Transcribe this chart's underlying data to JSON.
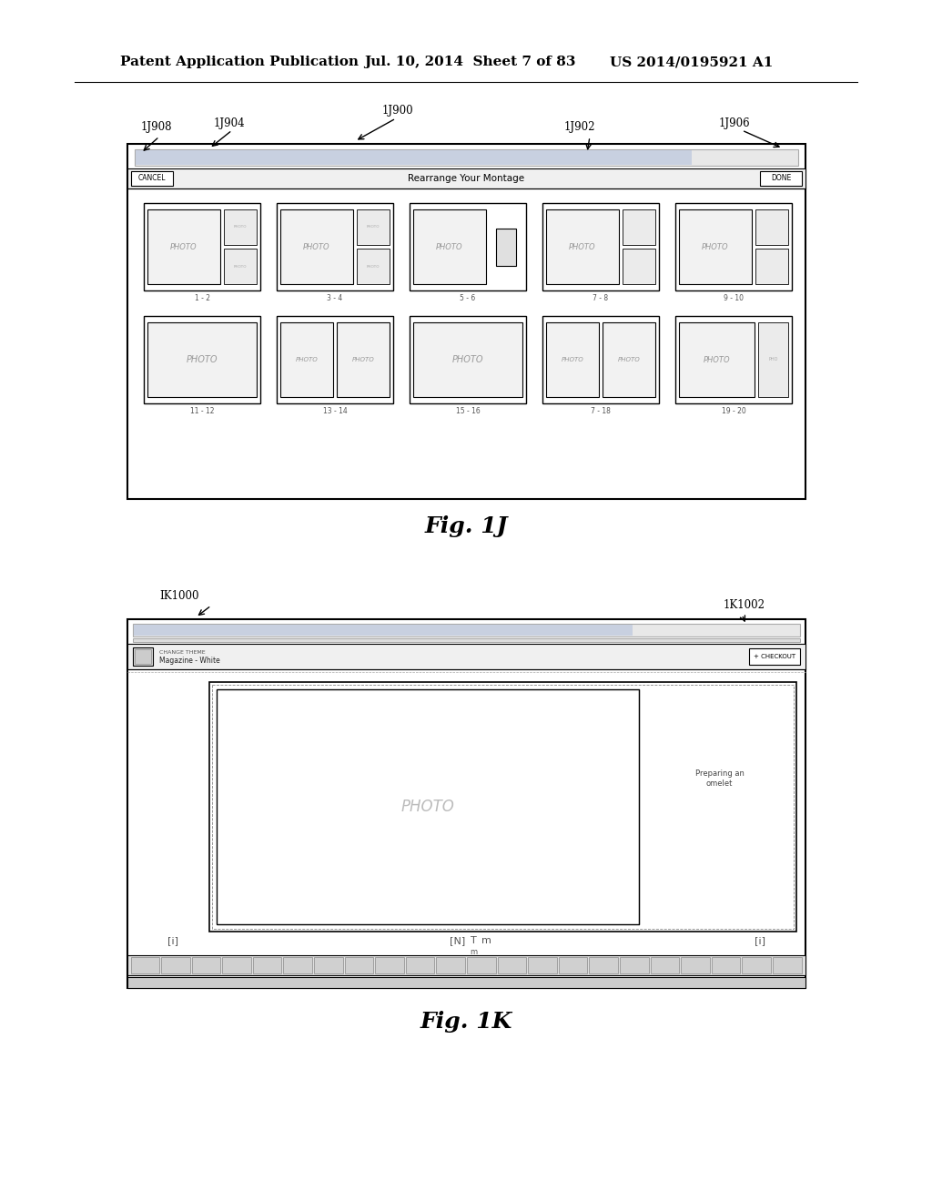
{
  "bg_color": "#ffffff",
  "header_text_left": "Patent Application Publication",
  "header_text_mid": "Jul. 10, 2014  Sheet 7 of 83",
  "header_text_right": "US 2014/0195921 A1",
  "fig1j_label": "Fig. 1J",
  "fig1k_label": "Fig. 1K",
  "row1_labels": [
    "1 - 2",
    "3 - 4",
    "5 - 6",
    "7 - 8",
    "9 - 10"
  ],
  "row2_labels": [
    "11 - 12",
    "13 - 14",
    "15 - 16",
    "7 - 18",
    "19 - 20"
  ]
}
